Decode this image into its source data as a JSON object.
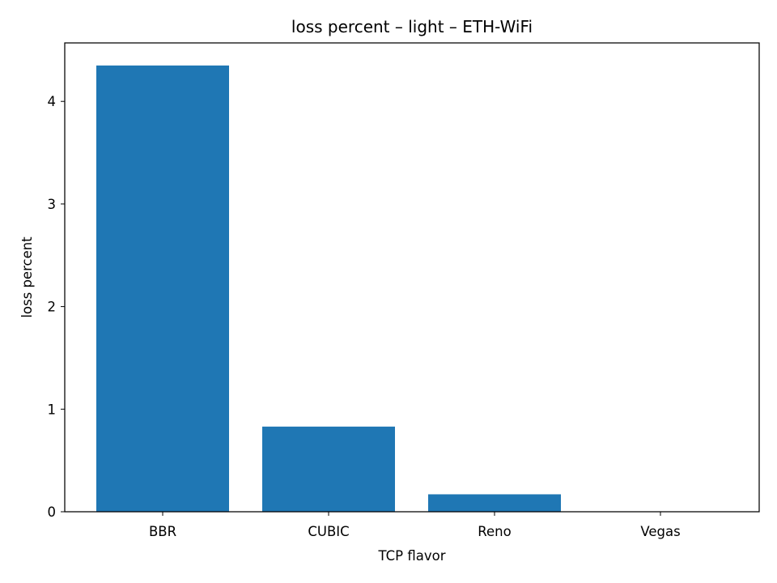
{
  "chart_data": {
    "type": "bar",
    "title": "loss percent – light – ETH-WiFi",
    "xlabel": "TCP flavor",
    "ylabel": "loss percent",
    "categories": [
      "BBR",
      "CUBIC",
      "Reno",
      "Vegas"
    ],
    "values": [
      4.35,
      0.83,
      0.17,
      0.0
    ],
    "ylim": [
      0,
      4.57
    ],
    "yticks": [
      0,
      1,
      2,
      3,
      4
    ],
    "bar_color": "#1f77b4",
    "grid": false,
    "legend": "none"
  }
}
